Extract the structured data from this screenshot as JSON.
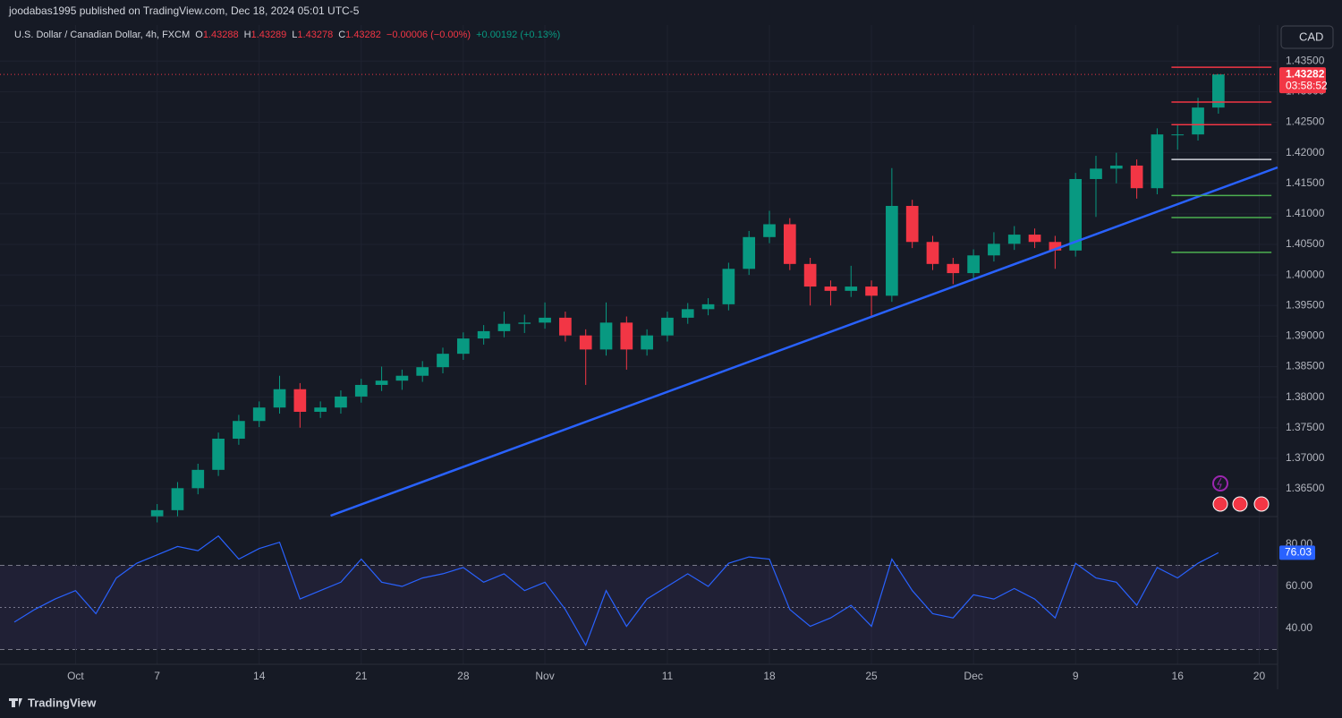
{
  "header": {
    "publisher": "joodabas1995 published on TradingView.com, Dec 18, 2024 05:01 UTC-5",
    "symbol": "U.S. Dollar / Canadian Dollar, 4h, FXCM",
    "ohlc": [
      {
        "label": "O",
        "value": "1.43288"
      },
      {
        "label": "H",
        "value": "1.43289"
      },
      {
        "label": "L",
        "value": "1.43278"
      },
      {
        "label": "C",
        "value": "1.43282"
      }
    ],
    "change": "−0.00006 (−0.00%)",
    "change2": "+0.00192 (+0.13%)"
  },
  "currency": "CAD",
  "brand": "TradingView",
  "chart_data": [
    {
      "type": "candlestick",
      "x": [
        4,
        5,
        6,
        7,
        8,
        9,
        10,
        11,
        12,
        13,
        14,
        15,
        16,
        17,
        18,
        19,
        20,
        21,
        22,
        23,
        24,
        25,
        26,
        27,
        28,
        29,
        30,
        31,
        32,
        33,
        34,
        35,
        36,
        37,
        38,
        39,
        40,
        41,
        42,
        43,
        44,
        45,
        46,
        47,
        48,
        49,
        50,
        51,
        52,
        53,
        54,
        55,
        56
      ],
      "open": [
        1.3605,
        1.3615,
        1.3651,
        1.3681,
        1.3732,
        1.3761,
        1.3783,
        1.3813,
        1.3776,
        1.3783,
        1.3801,
        1.382,
        1.3827,
        1.3835,
        1.3849,
        1.3871,
        1.3896,
        1.3908,
        1.392,
        1.3922,
        1.393,
        1.3901,
        1.3878,
        1.3922,
        1.3878,
        1.3901,
        1.393,
        1.3944,
        1.3952,
        1.401,
        1.4062,
        1.4083,
        1.4018,
        1.3981,
        1.3974,
        1.3981,
        1.3966,
        1.4113,
        1.4054,
        1.4018,
        1.4003,
        1.4032,
        1.4051,
        1.4066,
        1.4054,
        1.404,
        1.4157,
        1.4174,
        1.4179,
        1.4142,
        1.423,
        1.423,
        1.4274
      ],
      "high": [
        1.3625,
        1.3661,
        1.3691,
        1.3742,
        1.3771,
        1.3793,
        1.3835,
        1.3823,
        1.3793,
        1.3811,
        1.383,
        1.385,
        1.3845,
        1.3859,
        1.3881,
        1.3906,
        1.3918,
        1.394,
        1.3935,
        1.3955,
        1.394,
        1.3911,
        1.3955,
        1.3932,
        1.3911,
        1.394,
        1.3954,
        1.3962,
        1.402,
        1.4072,
        1.4105,
        1.4093,
        1.4028,
        1.3991,
        1.4015,
        1.3991,
        1.4175,
        1.4123,
        1.4064,
        1.4028,
        1.4042,
        1.407,
        1.408,
        1.4076,
        1.4064,
        1.4167,
        1.4195,
        1.42,
        1.4189,
        1.424,
        1.4245,
        1.429,
        1.43289
      ],
      "low": [
        1.3595,
        1.3605,
        1.3641,
        1.3671,
        1.3722,
        1.3751,
        1.3773,
        1.375,
        1.3766,
        1.3773,
        1.3791,
        1.381,
        1.3812,
        1.3825,
        1.3839,
        1.3861,
        1.3886,
        1.3898,
        1.3905,
        1.3912,
        1.3891,
        1.382,
        1.3868,
        1.3845,
        1.3868,
        1.3891,
        1.392,
        1.3934,
        1.3942,
        1.4,
        1.4052,
        1.4008,
        1.395,
        1.395,
        1.3964,
        1.393,
        1.3956,
        1.4044,
        1.4008,
        1.3985,
        1.3993,
        1.4022,
        1.4041,
        1.4044,
        1.401,
        1.403,
        1.4095,
        1.415,
        1.4125,
        1.4132,
        1.4205,
        1.422,
        1.4264
      ],
      "close": [
        1.3615,
        1.3651,
        1.3681,
        1.3732,
        1.3761,
        1.3783,
        1.3813,
        1.3776,
        1.3783,
        1.3801,
        1.382,
        1.3827,
        1.3835,
        1.3849,
        1.3871,
        1.3896,
        1.3908,
        1.392,
        1.3922,
        1.393,
        1.3901,
        1.3878,
        1.3922,
        1.3878,
        1.3901,
        1.393,
        1.3944,
        1.3952,
        1.401,
        1.4062,
        1.4083,
        1.4018,
        1.3981,
        1.3974,
        1.3981,
        1.3966,
        1.4113,
        1.4054,
        1.4018,
        1.4003,
        1.4032,
        1.4051,
        1.4066,
        1.4054,
        1.404,
        1.4157,
        1.4174,
        1.4179,
        1.4142,
        1.423,
        1.423,
        1.4274,
        1.43282
      ],
      "up_color": "#089981",
      "down_color": "#f23645",
      "xlim": [
        -3.7,
        58.9
      ],
      "ylim": [
        1.3606,
        1.4409
      ],
      "yticks": [
        {
          "value": 1.435,
          "label": "1.43500"
        },
        {
          "value": 1.43,
          "label": "1.43000"
        },
        {
          "value": 1.425,
          "label": "1.42500"
        },
        {
          "value": 1.42,
          "label": "1.42000"
        },
        {
          "value": 1.415,
          "label": "1.41500"
        },
        {
          "value": 1.41,
          "label": "1.41000"
        },
        {
          "value": 1.405,
          "label": "1.40500"
        },
        {
          "value": 1.4,
          "label": "1.40000"
        },
        {
          "value": 1.395,
          "label": "1.39500"
        },
        {
          "value": 1.39,
          "label": "1.39000"
        },
        {
          "value": 1.385,
          "label": "1.38500"
        },
        {
          "value": 1.38,
          "label": "1.38000"
        },
        {
          "value": 1.375,
          "label": "1.37500"
        },
        {
          "value": 1.37,
          "label": "1.37000"
        },
        {
          "value": 1.365,
          "label": "1.36500"
        }
      ],
      "trendline": {
        "x": [
          12.5,
          58.9
        ],
        "values": [
          1.3606,
          1.4176
        ],
        "color": "#2962ff"
      },
      "levels": [
        {
          "value": 1.434,
          "color": "#f23645"
        },
        {
          "value": 1.4283,
          "color": "#f23645"
        },
        {
          "value": 1.4246,
          "color": "#f23645"
        },
        {
          "value": 1.4189,
          "color": "#d1d4dc"
        },
        {
          "value": 1.413,
          "color": "#4caf50"
        },
        {
          "value": 1.4094,
          "color": "#4caf50"
        },
        {
          "value": 1.4037,
          "color": "#4caf50"
        }
      ],
      "level_x": [
        53.7,
        58.6
      ],
      "last_label": "1.43282",
      "countdown": "03:58:52",
      "grid": true
    },
    {
      "type": "line",
      "color": "#2962ff",
      "x": [
        -3,
        -2,
        -1,
        0,
        1,
        2,
        3,
        4,
        5,
        6,
        7,
        8,
        9,
        10,
        11,
        12,
        13,
        14,
        15,
        16,
        17,
        18,
        19,
        20,
        21,
        22,
        23,
        24,
        25,
        26,
        27,
        28,
        29,
        30,
        31,
        32,
        33,
        34,
        35,
        36,
        37,
        38,
        39,
        40,
        41,
        42,
        43,
        44,
        45,
        46,
        47,
        48,
        49,
        50,
        51,
        52,
        53,
        54,
        55,
        56
      ],
      "values": [
        43,
        49,
        54,
        58,
        47,
        64,
        71,
        75,
        79,
        77,
        84,
        73,
        78,
        81,
        54,
        58,
        62,
        73,
        62,
        60,
        64,
        66,
        69,
        62,
        66,
        58,
        62,
        49,
        32,
        58,
        41,
        54,
        60,
        66,
        60,
        71,
        74,
        73,
        49,
        41,
        45,
        51,
        41,
        73,
        58,
        47,
        45,
        56,
        54,
        59,
        54,
        45,
        71,
        64,
        62,
        51,
        69,
        64,
        71,
        76.03
      ],
      "xlim": [
        -3.7,
        58.9
      ],
      "ylim": [
        23.8,
        92.8
      ],
      "yticks": [
        {
          "value": 80,
          "label": "80.00"
        },
        {
          "value": 60,
          "label": "60.00"
        },
        {
          "value": 40,
          "label": "40.00"
        }
      ],
      "levels": [
        70,
        50,
        30
      ],
      "last_label": "76.03",
      "xticks": [
        {
          "value": 0,
          "label": "Oct"
        },
        {
          "value": 4,
          "label": "7"
        },
        {
          "value": 9,
          "label": "14"
        },
        {
          "value": 14,
          "label": "21"
        },
        {
          "value": 19,
          "label": "28"
        },
        {
          "value": 23,
          "label": "Nov"
        },
        {
          "value": 29,
          "label": "11"
        },
        {
          "value": 34,
          "label": "18"
        },
        {
          "value": 39,
          "label": "25"
        },
        {
          "value": 44,
          "label": "Dec"
        },
        {
          "value": 49,
          "label": "9"
        },
        {
          "value": 54,
          "label": "16"
        },
        {
          "value": 58,
          "label": "20"
        }
      ]
    }
  ]
}
